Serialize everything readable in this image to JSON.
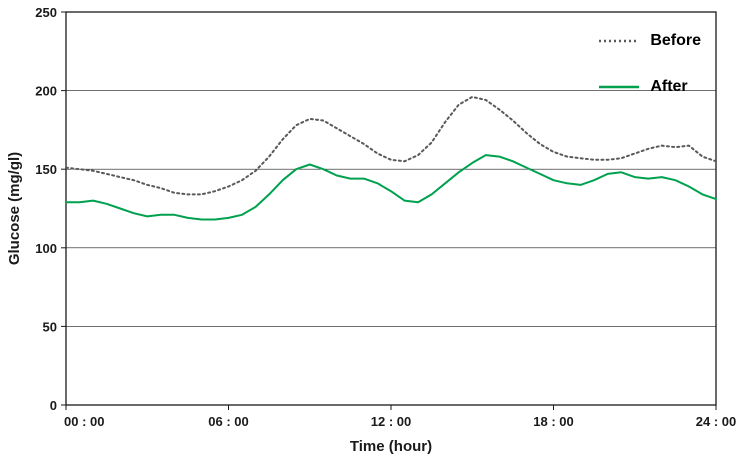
{
  "chart_data": {
    "type": "line",
    "title": "",
    "xlabel": "Time (hour)",
    "ylabel": "Glucose (mg/gl)",
    "xlim": [
      0,
      24
    ],
    "ylim": [
      0,
      250
    ],
    "y_ticks": [
      0,
      50,
      100,
      150,
      200,
      250
    ],
    "gridlines_y": [
      50,
      100,
      150,
      200
    ],
    "x_ticks": [
      {
        "value": 0,
        "label": "00 : 00"
      },
      {
        "value": 6,
        "label": "06 : 00"
      },
      {
        "value": 12,
        "label": "12 : 00"
      },
      {
        "value": 18,
        "label": "18 : 00"
      },
      {
        "value": 24,
        "label": "24 : 00"
      }
    ],
    "x": [
      0,
      0.5,
      1,
      1.5,
      2,
      2.5,
      3,
      3.5,
      4,
      4.5,
      5,
      5.5,
      6,
      6.5,
      7,
      7.5,
      8,
      8.5,
      9,
      9.5,
      10,
      10.5,
      11,
      11.5,
      12,
      12.5,
      13,
      13.5,
      14,
      14.5,
      15,
      15.5,
      16,
      16.5,
      17,
      17.5,
      18,
      18.5,
      19,
      19.5,
      20,
      20.5,
      21,
      21.5,
      22,
      22.5,
      23,
      23.5,
      24
    ],
    "series": [
      {
        "name": "Before",
        "color": "#58595b",
        "style": "dotted",
        "width": 2,
        "values": [
          151,
          150,
          149,
          147,
          145,
          143,
          140,
          138,
          135,
          134,
          134,
          136,
          139,
          143,
          149,
          158,
          169,
          178,
          182,
          181,
          176,
          171,
          166,
          160,
          156,
          155,
          159,
          167,
          180,
          191,
          196,
          194,
          188,
          181,
          173,
          166,
          161,
          158,
          157,
          156,
          156,
          157,
          160,
          163,
          165,
          164,
          165,
          158,
          155
        ]
      },
      {
        "name": "After",
        "color": "#00a14e",
        "style": "solid",
        "width": 2,
        "values": [
          129,
          129,
          130,
          128,
          125,
          122,
          120,
          121,
          121,
          119,
          118,
          118,
          119,
          121,
          126,
          134,
          143,
          150,
          153,
          150,
          146,
          144,
          144,
          141,
          136,
          130,
          129,
          134,
          141,
          148,
          154,
          159,
          158,
          155,
          151,
          147,
          143,
          141,
          140,
          143,
          147,
          148,
          145,
          144,
          145,
          143,
          139,
          134,
          131
        ]
      }
    ],
    "legend_position": "top-right",
    "grid": "horizontal",
    "axis_color": "#1a1a1a"
  }
}
